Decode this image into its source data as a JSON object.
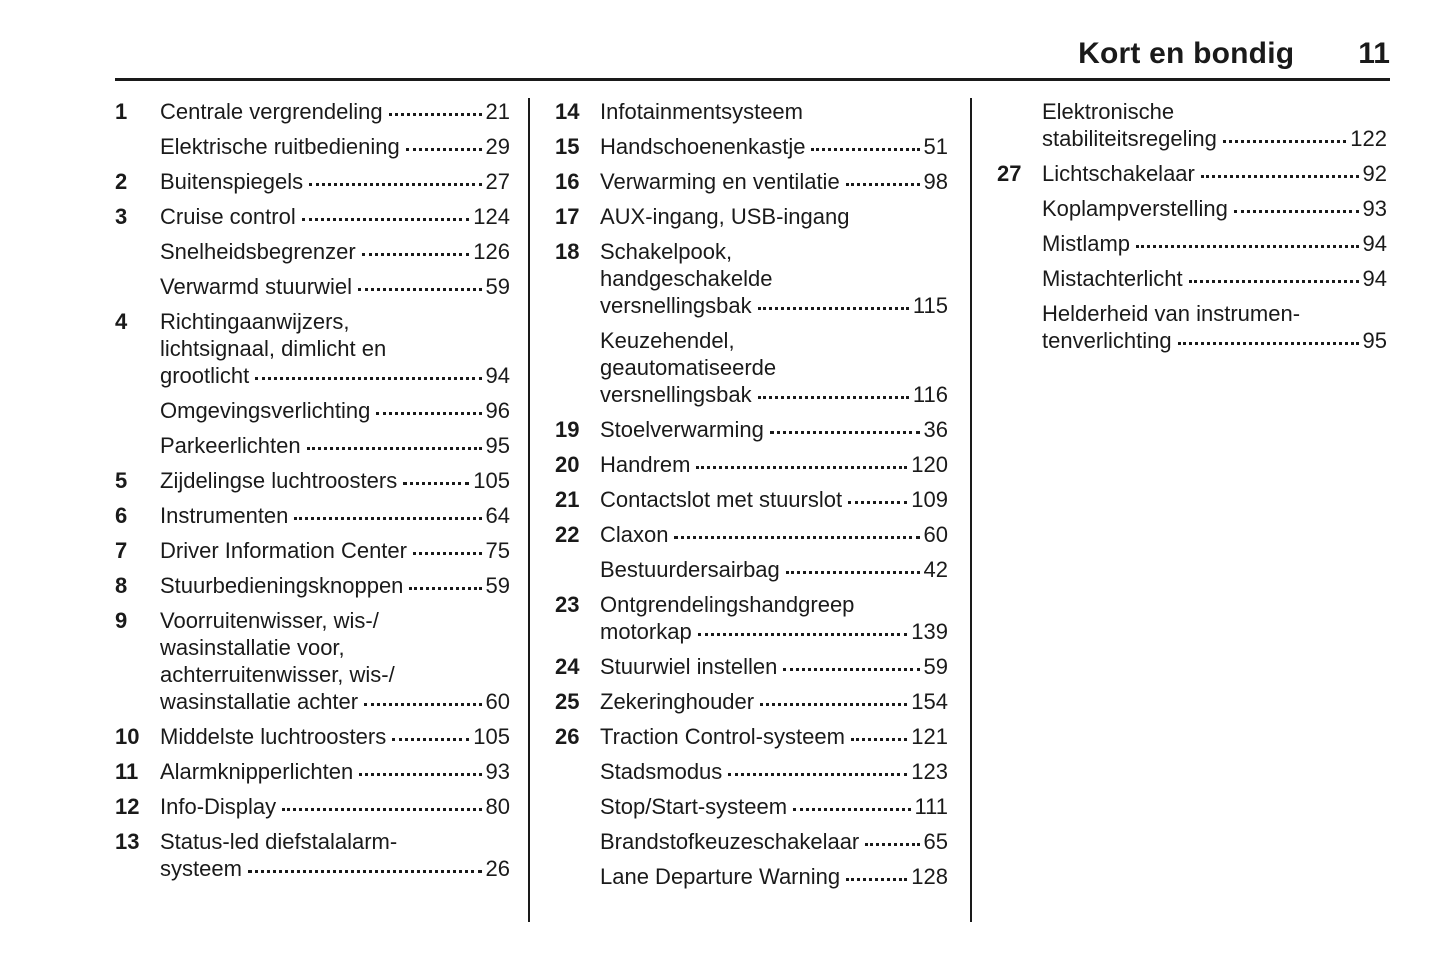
{
  "header": {
    "title": "Kort en bondig",
    "page_number": "11"
  },
  "columns": [
    {
      "entries": [
        {
          "num": "1",
          "lines": [
            "Centrale vergrendeling"
          ],
          "page": "21"
        },
        {
          "num": "",
          "lines": [
            "Elektrische ruitbediening"
          ],
          "page": "29"
        },
        {
          "num": "2",
          "lines": [
            "Buitenspiegels"
          ],
          "page": "27"
        },
        {
          "num": "3",
          "lines": [
            "Cruise control"
          ],
          "page": "124"
        },
        {
          "num": "",
          "lines": [
            "Snelheidsbegrenzer"
          ],
          "page": "126",
          "gap": true
        },
        {
          "num": "",
          "lines": [
            "Verwarmd stuurwiel"
          ],
          "page": "59"
        },
        {
          "num": "4",
          "lines": [
            "Richtingaanwijzers,",
            "lichtsignaal, dimlicht en",
            "grootlicht"
          ],
          "page": "94"
        },
        {
          "num": "",
          "lines": [
            "Omgevingsverlichting"
          ],
          "page": "96",
          "gap": true
        },
        {
          "num": "",
          "lines": [
            "Parkeerlichten"
          ],
          "page": "95",
          "gap": true
        },
        {
          "num": "5",
          "lines": [
            "Zijdelingse luchtroosters"
          ],
          "page": "105"
        },
        {
          "num": "6",
          "lines": [
            "Instrumenten"
          ],
          "page": "64"
        },
        {
          "num": "7",
          "lines": [
            "Driver Information Center"
          ],
          "page": "75"
        },
        {
          "num": "8",
          "lines": [
            "Stuurbedieningsknoppen"
          ],
          "page": "59"
        },
        {
          "num": "9",
          "lines": [
            "Voorruitenwisser, wis-/",
            "wasinstallatie voor,",
            "achterruitenwisser, wis-/",
            "wasinstallatie achter"
          ],
          "page": "60"
        },
        {
          "num": "10",
          "lines": [
            "Middelste luchtroosters"
          ],
          "page": "105"
        },
        {
          "num": "11",
          "lines": [
            "Alarmknipperlichten"
          ],
          "page": "93"
        },
        {
          "num": "12",
          "lines": [
            "Info-Display"
          ],
          "page": "80"
        },
        {
          "num": "13",
          "lines": [
            "Status-led diefstalalarm-",
            "systeem"
          ],
          "page": "26"
        }
      ]
    },
    {
      "entries": [
        {
          "num": "14",
          "lines": [
            "Infotainmentsysteem"
          ],
          "page": ""
        },
        {
          "num": "15",
          "lines": [
            "Handschoenenkastje"
          ],
          "page": "51"
        },
        {
          "num": "16",
          "lines": [
            "Verwarming en ventilatie"
          ],
          "page": "98"
        },
        {
          "num": "17",
          "lines": [
            "AUX-ingang, USB-ingang"
          ],
          "page": ""
        },
        {
          "num": "18",
          "lines": [
            "Schakelpook,",
            "handgeschakelde",
            "versnellingsbak"
          ],
          "page": "115"
        },
        {
          "num": "",
          "lines": [
            "Keuzehendel,",
            "geautomatiseerde",
            "versnellingsbak"
          ],
          "page": "116"
        },
        {
          "num": "19",
          "lines": [
            "Stoelverwarming"
          ],
          "page": "36"
        },
        {
          "num": "20",
          "lines": [
            "Handrem"
          ],
          "page": "120"
        },
        {
          "num": "21",
          "lines": [
            "Contactslot met stuurslot"
          ],
          "page": "109"
        },
        {
          "num": "22",
          "lines": [
            "Claxon"
          ],
          "page": "60"
        },
        {
          "num": "",
          "lines": [
            "Bestuurdersairbag"
          ],
          "page": "42",
          "gap": true
        },
        {
          "num": "23",
          "lines": [
            "Ontgrendelingshandgreep",
            "motorkap"
          ],
          "page": "139"
        },
        {
          "num": "24",
          "lines": [
            "Stuurwiel instellen"
          ],
          "page": "59"
        },
        {
          "num": "25",
          "lines": [
            "Zekeringhouder"
          ],
          "page": "154"
        },
        {
          "num": "26",
          "lines": [
            "Traction Control-systeem"
          ],
          "page": "121"
        },
        {
          "num": "",
          "lines": [
            "Stadsmodus"
          ],
          "page": "123"
        },
        {
          "num": "",
          "lines": [
            "Stop/Start-systeem"
          ],
          "page": "111"
        },
        {
          "num": "",
          "lines": [
            "Brandstofkeuzeschakelaar"
          ],
          "page": "65"
        },
        {
          "num": "",
          "lines": [
            "Lane Departure Warning"
          ],
          "page": "128"
        }
      ]
    },
    {
      "entries": [
        {
          "num": "",
          "lines": [
            "Elektronische",
            "stabiliteitsregeling"
          ],
          "page": "122"
        },
        {
          "num": "27",
          "lines": [
            "Lichtschakelaar"
          ],
          "page": "92"
        },
        {
          "num": "",
          "lines": [
            "Koplampverstelling"
          ],
          "page": "93",
          "gap": true
        },
        {
          "num": "",
          "lines": [
            "Mistlamp"
          ],
          "page": "94"
        },
        {
          "num": "",
          "lines": [
            "Mistachterlicht"
          ],
          "page": "94"
        },
        {
          "num": "",
          "lines": [
            "Helderheid van instrumen-",
            "tenverlichting"
          ],
          "page": "95",
          "gap": true
        }
      ]
    }
  ]
}
